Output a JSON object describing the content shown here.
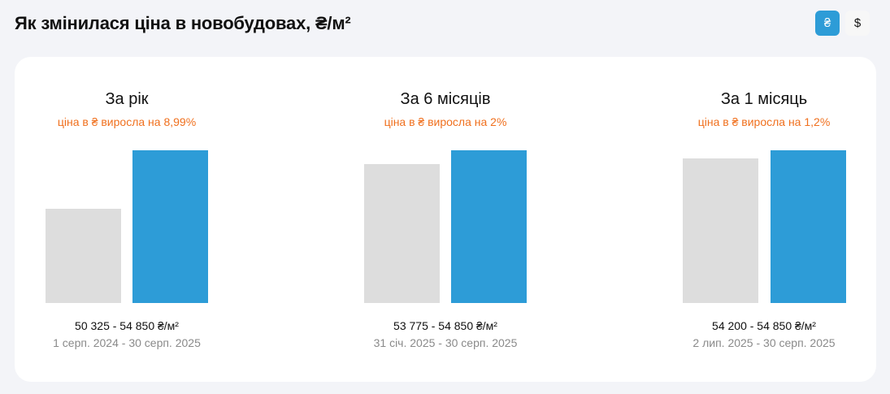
{
  "header": {
    "title": "Як змінилася ціна в новобудовах, ₴/м²"
  },
  "currency_toggle": {
    "options": [
      {
        "label": "₴",
        "active": true
      },
      {
        "label": "$",
        "active": false
      }
    ]
  },
  "colors": {
    "accent": "#2d9cd7",
    "old_bar": "#dddddd",
    "growth_text": "#f0701e",
    "background": "#f3f4f8"
  },
  "groups": [
    {
      "title": "За рік",
      "subtitle": "ціна в ₴ виросла на 8,99%",
      "range": "50 325 - 54 850 ₴/м²",
      "dates": "1 серп. 2024 - 30 серп. 2025"
    },
    {
      "title": "За 6 місяців",
      "subtitle": "ціна в ₴ виросла на 2%",
      "range": "53 775 - 54 850 ₴/м²",
      "dates": "31 січ. 2025 - 30 серп. 2025"
    },
    {
      "title": "За 1 місяць",
      "subtitle": "ціна в ₴ виросла на 1,2%",
      "range": "54 200 - 54 850 ₴/м²",
      "dates": "2 лип. 2025 - 30 серп. 2025"
    }
  ],
  "chart_data": [
    {
      "type": "bar",
      "title": "За рік",
      "subtitle": "ціна в ₴ виросла на 8,99%",
      "categories": [
        "1 серп. 2024",
        "30 серп. 2025"
      ],
      "values": [
        50325,
        54850
      ],
      "unit": "₴/м²",
      "change_pct": 8.99,
      "xlabel": "",
      "ylabel": "",
      "grid": false
    },
    {
      "type": "bar",
      "title": "За 6 місяців",
      "subtitle": "ціна в ₴ виросла на 2%",
      "categories": [
        "31 січ. 2025",
        "30 серп. 2025"
      ],
      "values": [
        53775,
        54850
      ],
      "unit": "₴/м²",
      "change_pct": 2,
      "xlabel": "",
      "ylabel": "",
      "grid": false
    },
    {
      "type": "bar",
      "title": "За 1 місяць",
      "subtitle": "ціна в ₴ виросла на 1,2%",
      "categories": [
        "2 лип. 2025",
        "30 серп. 2025"
      ],
      "values": [
        54200,
        54850
      ],
      "unit": "₴/м²",
      "change_pct": 1.2,
      "xlabel": "",
      "ylabel": "",
      "grid": false
    }
  ]
}
